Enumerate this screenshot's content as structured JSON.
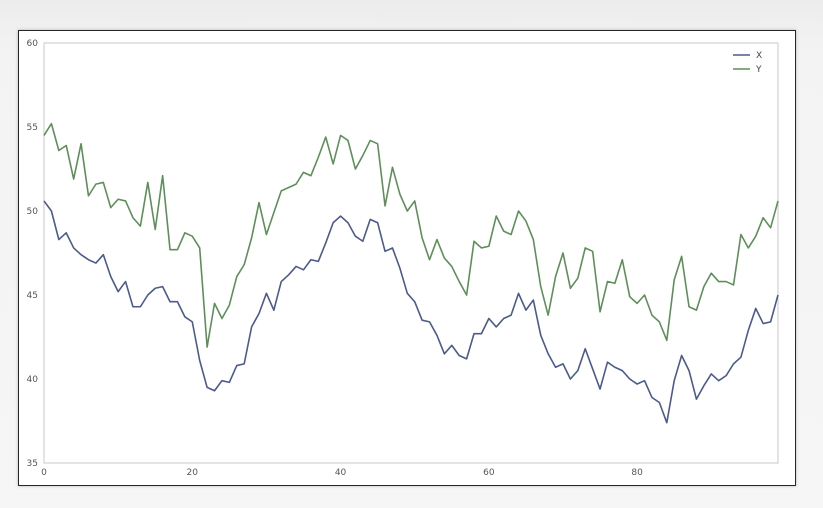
{
  "chart_data": {
    "type": "line",
    "title": "",
    "xlabel": "",
    "ylabel": "",
    "xlim": [
      0,
      99
    ],
    "ylim": [
      35,
      60
    ],
    "x_ticks": [
      "0",
      "20",
      "40",
      "60",
      "80"
    ],
    "y_ticks": [
      "35",
      "40",
      "45",
      "50",
      "55",
      "60"
    ],
    "grid": true,
    "legend": "top-right",
    "series": [
      {
        "name": "X",
        "color": "#4c5a8e",
        "values": [
          50.6,
          50.0,
          48.3,
          48.7,
          47.8,
          47.4,
          47.1,
          46.9,
          47.4,
          46.1,
          45.2,
          45.8,
          44.3,
          44.3,
          45.0,
          45.4,
          45.5,
          44.6,
          44.6,
          43.7,
          43.4,
          41.1,
          39.5,
          39.3,
          39.9,
          39.8,
          40.8,
          40.9,
          43.1,
          43.9,
          45.1,
          44.1,
          45.8,
          46.2,
          46.7,
          46.5,
          47.1,
          47.0,
          48.1,
          49.3,
          49.7,
          49.3,
          48.5,
          48.2,
          49.5,
          49.3,
          47.6,
          47.8,
          46.6,
          45.1,
          44.6,
          43.5,
          43.4,
          42.6,
          41.5,
          42.0,
          41.4,
          41.2,
          42.7,
          42.7,
          43.6,
          43.1,
          43.6,
          43.8,
          45.1,
          44.1,
          44.7,
          42.6,
          41.5,
          40.7,
          40.9,
          40.0,
          40.5,
          41.8,
          40.6,
          39.4,
          41.0,
          40.7,
          40.5,
          40.0,
          39.7,
          39.9,
          38.9,
          38.6,
          37.4,
          39.9,
          41.4,
          40.5,
          38.8,
          39.6,
          40.3,
          39.9,
          40.2,
          40.9,
          41.3,
          42.9,
          44.2,
          43.3,
          43.4,
          45.0
        ]
      },
      {
        "name": "Y",
        "color": "#5e8f5a",
        "values": [
          54.5,
          55.2,
          53.6,
          53.9,
          51.9,
          54.0,
          50.9,
          51.6,
          51.7,
          50.2,
          50.7,
          50.6,
          49.6,
          49.1,
          51.7,
          48.9,
          52.1,
          47.7,
          47.7,
          48.7,
          48.5,
          47.8,
          41.9,
          44.5,
          43.6,
          44.4,
          46.1,
          46.8,
          48.4,
          50.5,
          48.6,
          49.9,
          51.2,
          51.4,
          51.6,
          52.3,
          52.1,
          53.2,
          54.4,
          52.8,
          54.5,
          54.2,
          52.5,
          53.3,
          54.2,
          54.0,
          50.3,
          52.6,
          51.0,
          50.0,
          50.6,
          48.4,
          47.1,
          48.3,
          47.2,
          46.7,
          45.8,
          45.0,
          48.2,
          47.8,
          47.9,
          49.7,
          48.8,
          48.6,
          50.0,
          49.4,
          48.3,
          45.5,
          43.8,
          46.1,
          47.5,
          45.4,
          46.0,
          47.8,
          47.6,
          44.0,
          45.8,
          45.7,
          47.1,
          44.9,
          44.5,
          45.0,
          43.8,
          43.4,
          42.3,
          45.9,
          47.3,
          44.3,
          44.1,
          45.5,
          46.3,
          45.8,
          45.8,
          45.6,
          48.6,
          47.8,
          48.5,
          49.6,
          49.0,
          50.6
        ]
      }
    ]
  }
}
